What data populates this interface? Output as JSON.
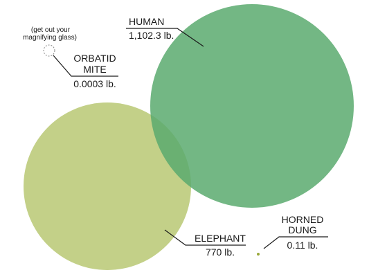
{
  "chart_data": {
    "type": "bubble",
    "title": "",
    "note": [
      "(get out your",
      "magnifying glass)"
    ],
    "colors": {
      "human": "#5aaa6e",
      "elephant": "#b4c46a",
      "dung_dot": "#9aa83a",
      "callout_line": "#1a1a1a",
      "mite_ring": "#888888"
    },
    "series": [
      {
        "key": "orbatid_mite",
        "name_lines": [
          "ORBATID",
          "MITE"
        ],
        "weight_label": "0.0003 lb.",
        "value": 0.0003,
        "unit": "lb."
      },
      {
        "key": "human",
        "name_lines": [
          "HUMAN"
        ],
        "weight_label": "1,102.3 lb.",
        "value": 1102.3,
        "unit": "lb."
      },
      {
        "key": "elephant",
        "name_lines": [
          "ELEPHANT"
        ],
        "weight_label": "770 lb.",
        "value": 770,
        "unit": "lb."
      },
      {
        "key": "horned_dung",
        "name_lines": [
          "HORNED",
          "DUNG"
        ],
        "weight_label": "0.11 lb.",
        "value": 0.11,
        "unit": "lb."
      }
    ]
  }
}
